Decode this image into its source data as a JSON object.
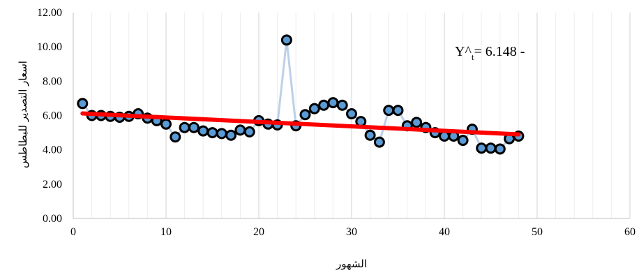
{
  "chart_data": {
    "type": "scatter",
    "xlabel": "الشهور",
    "ylabel": "اسعار التصدير للبطاطس",
    "xlim": [
      0,
      60
    ],
    "ylim": [
      0,
      12
    ],
    "x_ticks": [
      "0",
      "10",
      "20",
      "30",
      "40",
      "50",
      "60"
    ],
    "y_ticks": [
      "0.00",
      "2.00",
      "4.00",
      "6.00",
      "8.00",
      "10.00",
      "12.00"
    ],
    "grid": "vertical-minor",
    "annotation": {
      "prefix": "Y^",
      "subscript": "t",
      "rest": "= 6.148 -"
    },
    "series": [
      {
        "type": "line+markers",
        "x": [
          1,
          2,
          3,
          4,
          5,
          6,
          7,
          8,
          9,
          10,
          11,
          12,
          13,
          14,
          15,
          16,
          17,
          18,
          19,
          20,
          21,
          22,
          23,
          24,
          25,
          26,
          27,
          28,
          29,
          30,
          31,
          32,
          33,
          34,
          35,
          36,
          37,
          38,
          39,
          40,
          41,
          42,
          43,
          44,
          45,
          46,
          47,
          48
        ],
        "y": [
          6.7,
          6.0,
          6.0,
          5.95,
          5.9,
          5.95,
          6.1,
          5.85,
          5.7,
          5.5,
          4.75,
          5.3,
          5.3,
          5.1,
          5.0,
          4.95,
          4.85,
          5.15,
          5.05,
          5.7,
          5.5,
          5.45,
          10.4,
          5.4,
          6.05,
          6.4,
          6.6,
          6.75,
          6.6,
          6.1,
          5.65,
          4.85,
          4.45,
          6.3,
          6.3,
          5.4,
          5.6,
          5.3,
          5.0,
          4.8,
          4.8,
          4.55,
          5.2,
          4.1,
          4.1,
          4.05,
          4.65,
          4.8
        ],
        "line_color": "#bcd0e8",
        "marker_fill": "#5b9bd5",
        "marker_edge": "#000000"
      },
      {
        "type": "trendline",
        "x": [
          1,
          48
        ],
        "y": [
          6.12,
          4.9
        ],
        "color": "#ff0000"
      }
    ]
  }
}
